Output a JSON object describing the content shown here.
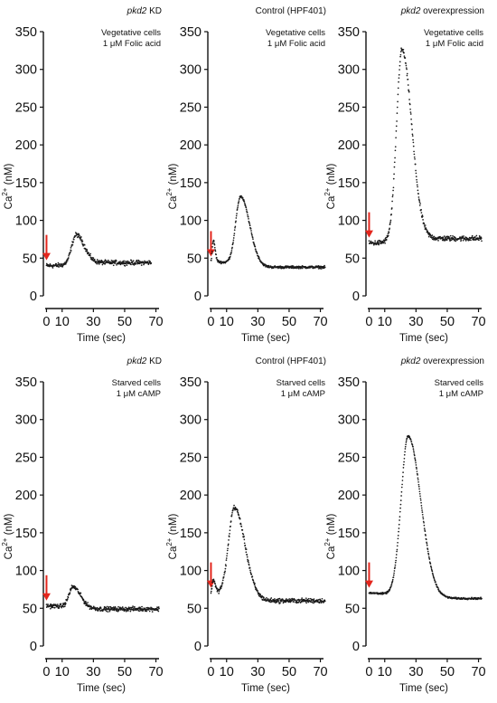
{
  "chart_data": [
    {
      "type": "scatter",
      "condition": {
        "gene": "pkd2",
        "suffix": " KD"
      },
      "annotation": [
        "Vegetative cells",
        "1 μM Folic acid"
      ],
      "xlabel": "Time (sec)",
      "ylabel_base": "Ca",
      "ylabel_sup": "2+",
      "ylabel_unit": " (nM)",
      "xticks": [
        0,
        10,
        30,
        50,
        70
      ],
      "yticks": [
        0,
        50,
        100,
        150,
        200,
        250,
        300,
        350
      ],
      "xlim": [
        -2,
        72
      ],
      "ylim": [
        0,
        350
      ],
      "stimulus_time": 0,
      "stimulus_color": "#e3261d",
      "x_start": 0,
      "x_end": 67,
      "baseline": 40,
      "tail": 44,
      "noise": 2.6,
      "peaks": [
        {
          "t": 19,
          "amp": 39,
          "w": 5.5
        }
      ]
    },
    {
      "type": "scatter",
      "condition": {
        "prefix": "Control (HPF401)"
      },
      "annotation": [
        "Vegetative cells",
        "1 μM Folic acid"
      ],
      "xlabel": "Time (sec)",
      "ylabel_base": "Ca",
      "ylabel_sup": "2+",
      "ylabel_unit": " (nM)",
      "xticks": [
        0,
        10,
        30,
        50,
        70
      ],
      "yticks": [
        0,
        50,
        100,
        150,
        200,
        250,
        300,
        350
      ],
      "xlim": [
        -2,
        72
      ],
      "ylim": [
        0,
        350
      ],
      "stimulus_time": 0,
      "stimulus_color": "#e3261d",
      "x_start": 0,
      "x_end": 73,
      "baseline": 45,
      "tail": 38,
      "noise": 1.4,
      "peaks": [
        {
          "t": 1.5,
          "amp": 28,
          "w": 1.2
        },
        {
          "t": 19,
          "amp": 90,
          "w": 6
        }
      ]
    },
    {
      "type": "scatter",
      "condition": {
        "gene": "pkd2",
        "suffix": " overexpression"
      },
      "annotation": [
        "Vegetative cells",
        "1 μM Folic acid"
      ],
      "xlabel": "Time (sec)",
      "ylabel_base": "Ca",
      "ylabel_sup": "2+",
      "ylabel_unit": " (nM)",
      "xticks": [
        0,
        10,
        30,
        50,
        70
      ],
      "yticks": [
        0,
        50,
        100,
        150,
        200,
        250,
        300,
        350
      ],
      "xlim": [
        -2,
        72
      ],
      "ylim": [
        0,
        350
      ],
      "stimulus_time": 0,
      "stimulus_color": "#e3261d",
      "x_start": 0,
      "x_end": 72,
      "baseline": 70,
      "tail": 76,
      "noise": 3,
      "peaks": [
        {
          "t": 21,
          "amp": 253,
          "w": 6.5
        }
      ]
    },
    {
      "type": "scatter",
      "condition": {
        "gene": "pkd2",
        "suffix": " KD"
      },
      "annotation": [
        "Starved cells",
        "1 μM cAMP"
      ],
      "xlabel": "Time (sec)",
      "ylabel_base": "Ca",
      "ylabel_sup": "2+",
      "ylabel_unit": " (nM)",
      "xticks": [
        0,
        10,
        30,
        50,
        70
      ],
      "yticks": [
        0,
        50,
        100,
        150,
        200,
        250,
        300,
        350
      ],
      "xlim": [
        -2,
        72
      ],
      "ylim": [
        0,
        350
      ],
      "stimulus_time": 0,
      "stimulus_color": "#e3261d",
      "x_start": 0,
      "x_end": 72,
      "baseline": 53,
      "tail": 49,
      "noise": 2.5,
      "peaks": [
        {
          "t": 17,
          "amp": 27,
          "w": 5
        }
      ]
    },
    {
      "type": "scatter",
      "condition": {
        "prefix": "Control (HPF401)"
      },
      "annotation": [
        "Starved cells",
        "1 μM cAMP"
      ],
      "xlabel": "Time (sec)",
      "ylabel_base": "Ca",
      "ylabel_sup": "2+",
      "ylabel_unit": " (nM)",
      "xticks": [
        0,
        10,
        30,
        50,
        70
      ],
      "yticks": [
        0,
        50,
        100,
        150,
        200,
        250,
        300,
        350
      ],
      "xlim": [
        -2,
        72
      ],
      "ylim": [
        0,
        350
      ],
      "stimulus_time": 0,
      "stimulus_color": "#e3261d",
      "x_start": 0,
      "x_end": 73,
      "baseline": 70,
      "tail": 60,
      "noise": 2.6,
      "peaks": [
        {
          "t": 1.5,
          "amp": 18,
          "w": 1.3
        },
        {
          "t": 15,
          "amp": 117,
          "w": 7
        }
      ]
    },
    {
      "type": "scatter",
      "condition": {
        "gene": "pkd2",
        "suffix": " overexpression"
      },
      "annotation": [
        "Starved cells",
        "1 μM cAMP"
      ],
      "xlabel": "Time (sec)",
      "ylabel_base": "Ca",
      "ylabel_sup": "2+",
      "ylabel_unit": " (nM)",
      "xticks": [
        0,
        10,
        30,
        50,
        70
      ],
      "yticks": [
        0,
        50,
        100,
        150,
        200,
        250,
        300,
        350
      ],
      "xlim": [
        -2,
        72
      ],
      "ylim": [
        0,
        350
      ],
      "stimulus_time": 0,
      "stimulus_color": "#e3261d",
      "x_start": 0,
      "x_end": 72,
      "baseline": 70,
      "tail": 63,
      "noise": 1.0,
      "peaks": [
        {
          "t": 25,
          "amp": 213,
          "w": 8.5
        }
      ]
    }
  ]
}
